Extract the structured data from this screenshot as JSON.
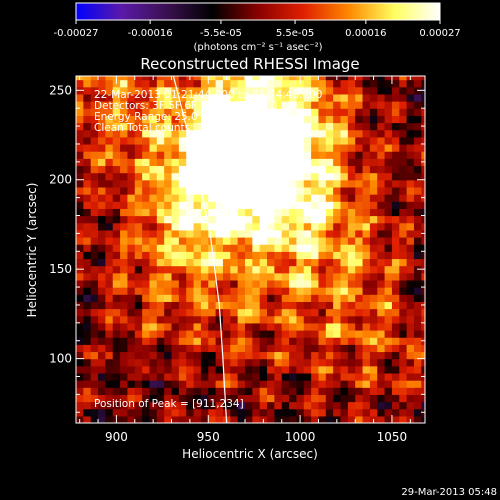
{
  "chart_data": {
    "type": "heatmap",
    "title": "Reconstructed RHESSI Image",
    "xlabel": "Heliocentric X (arcsec)",
    "ylabel": "Heliocentric Y (arcsec)",
    "xlim": [
      878,
      1068
    ],
    "ylim": [
      64,
      258
    ],
    "x_ticks": [
      900,
      950,
      1000,
      1050
    ],
    "y_ticks": [
      100,
      150,
      200,
      250
    ],
    "colorbar": {
      "range": [
        -0.00027,
        0.00027
      ],
      "ticks": [
        {
          "value": -0.00027,
          "label": "-0.00027"
        },
        {
          "value": -0.00016,
          "label": "-0.00016"
        },
        {
          "value": -5.5e-05,
          "label": "-5.5e-05"
        },
        {
          "value": 5.5e-05,
          "label": "5.5e-05"
        },
        {
          "value": 0.00016,
          "label": "0.00016"
        },
        {
          "value": 0.00027,
          "label": "0.00027"
        }
      ],
      "unit_label": "(photons cm⁻² s⁻¹ asec⁻²)",
      "colors": [
        "#0000ff",
        "#5a1aa8",
        "#3a1050",
        "#000000",
        "#8a0000",
        "#e02000",
        "#ff8800",
        "#ffff60",
        "#ffffff"
      ]
    },
    "annotations": [
      "22-Mar-2013 01:21:44.000 to 01:24:48.000",
      "Detectors: 3F 5F 6F 7F 8F 9F, Att 0",
      "Energy Range: 25.0 - 50.0 keV",
      "Clean     Total counts: 3.93E+03"
    ],
    "peak_text": "Position of Peak = [911,234]",
    "peak": [
      911,
      234
    ],
    "limb_curve": [
      [
        931,
        258
      ],
      [
        943,
        210
      ],
      [
        951,
        170
      ],
      [
        956,
        130
      ],
      [
        958,
        100
      ],
      [
        960,
        64
      ]
    ],
    "emission_blobs": [
      {
        "x": 960,
        "y": 210,
        "amp": 1.0
      },
      {
        "x": 990,
        "y": 190,
        "amp": 0.7
      },
      {
        "x": 970,
        "y": 240,
        "amp": 0.8
      },
      {
        "x": 1000,
        "y": 230,
        "amp": 0.6
      },
      {
        "x": 940,
        "y": 180,
        "amp": 0.5
      },
      {
        "x": 1020,
        "y": 160,
        "amp": 0.45
      },
      {
        "x": 900,
        "y": 240,
        "amp": 0.5
      },
      {
        "x": 1040,
        "y": 110,
        "amp": 0.35
      },
      {
        "x": 930,
        "y": 140,
        "amp": 0.35
      },
      {
        "x": 980,
        "y": 130,
        "amp": 0.3
      }
    ]
  },
  "timestamp": "29-Mar-2013 05:48"
}
